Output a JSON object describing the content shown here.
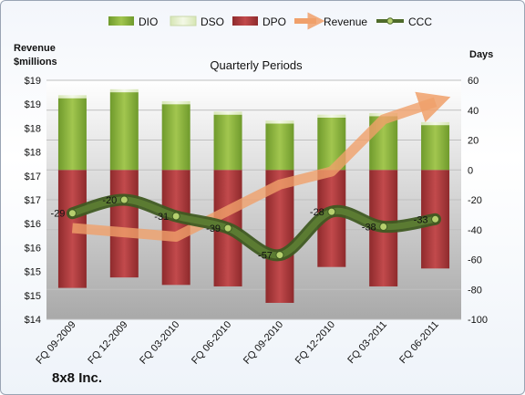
{
  "chart_data": {
    "type": "bar",
    "title": "Quarterly Periods",
    "company": "8x8 Inc.",
    "left_axis": {
      "label_line1": "Revenue",
      "label_line2": "$millions",
      "tick_labels": [
        "$19",
        "$19",
        "$18",
        "$18",
        "$17",
        "$17",
        "$16",
        "$16",
        "$15",
        "$15",
        "$14"
      ],
      "range": [
        14,
        19.5
      ]
    },
    "right_axis": {
      "label": "Days",
      "ticks": [
        60,
        40,
        20,
        0,
        -20,
        -40,
        -60,
        -80,
        -100
      ],
      "range": [
        -100,
        60
      ]
    },
    "categories": [
      "FQ 09-2009",
      "FQ 12-2009",
      "FQ 03-2010",
      "FQ 06-2010",
      "FQ 09-2010",
      "FQ 12-2010",
      "FQ 03-2011",
      "FQ 06-2011"
    ],
    "legend": [
      "DIO",
      "DSO",
      "DPO",
      "Revenue",
      "CCC"
    ],
    "series": [
      {
        "name": "DPO",
        "values": [
          -79,
          -72,
          -77,
          -78,
          -89,
          -65,
          -78,
          -66
        ]
      },
      {
        "name": "DIO",
        "values": [
          48,
          52,
          44,
          37,
          31,
          35,
          36,
          30
        ]
      },
      {
        "name": "DSO",
        "values": [
          2,
          2,
          2,
          2,
          2,
          2,
          2,
          2
        ]
      },
      {
        "name": "CCC",
        "values": [
          -29,
          -20,
          -31,
          -39,
          -57,
          -28,
          -38,
          -33
        ]
      },
      {
        "name": "Revenue",
        "values": [
          16.1,
          16.0,
          15.9,
          16.5,
          17.1,
          17.4,
          18.6,
          19.0
        ]
      }
    ],
    "ccc_labels": [
      "-29",
      "-20",
      "-31",
      "-39",
      "-57",
      "-28",
      "-38",
      "-33"
    ],
    "colors": {
      "DIO": "#8db23f",
      "DSO": "#e4efcc",
      "DPO": "#b13a3c",
      "Revenue": "#f0a06a",
      "CCC": "#4e6b2a"
    }
  }
}
